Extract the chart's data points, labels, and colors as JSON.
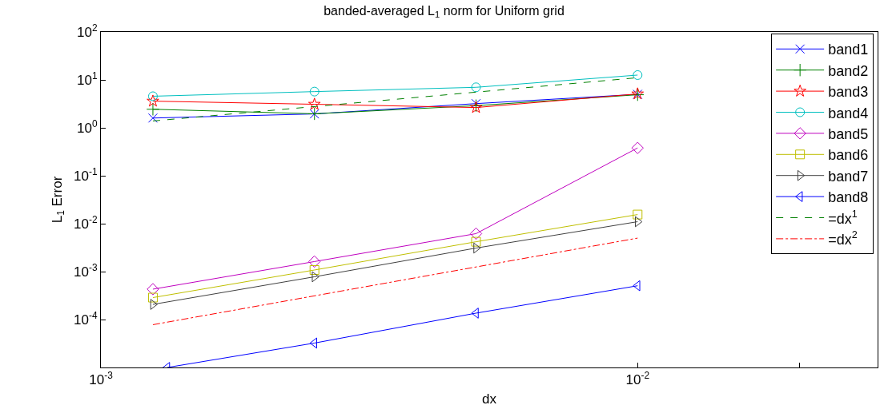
{
  "chart_data": {
    "type": "line",
    "title": "banded-averaged L$_{1}$ norm for Uniform grid",
    "xlabel": "dx",
    "ylabel": "L$_{1}$ Error",
    "x": [
      0.00125,
      0.0025,
      0.005,
      0.01
    ],
    "series": [
      {
        "name": "band1",
        "color": "#0000ff",
        "marker": "x",
        "values": [
          1.6,
          1.95,
          3.2,
          5.0
        ]
      },
      {
        "name": "band2",
        "color": "#008000",
        "marker": "plus",
        "values": [
          2.44,
          1.96,
          2.9,
          4.9
        ]
      },
      {
        "name": "band3",
        "color": "#ff0000",
        "marker": "star",
        "values": [
          3.6,
          3.1,
          2.65,
          5.1
        ]
      },
      {
        "name": "band4",
        "color": "#00bfbf",
        "marker": "circle",
        "values": [
          4.56,
          5.7,
          7.0,
          12.6
        ]
      },
      {
        "name": "band5",
        "color": "#bf00bf",
        "marker": "diamond",
        "values": [
          0.00043,
          0.00162,
          0.0062,
          0.38
        ]
      },
      {
        "name": "band6",
        "color": "#bfbf00",
        "marker": "square",
        "values": [
          0.000287,
          0.00108,
          0.0042,
          0.0155
        ]
      },
      {
        "name": "band7",
        "color": "#404040",
        "marker": "triangle-right",
        "values": [
          0.000207,
          0.00078,
          0.0031,
          0.011
        ]
      },
      {
        "name": "band8",
        "color": "#0000ff",
        "marker": "triangle-left",
        "x": [
          0.00133,
          0.0025,
          0.005,
          0.01
        ],
        "values": [
          1e-05,
          3.23e-05,
          0.000136,
          0.000507
        ]
      },
      {
        "name": "=dx$^{1}$",
        "color": "#008000",
        "marker": "none",
        "line_style": "dashed",
        "x": [
          0.00125,
          0.01
        ],
        "values": [
          1.39,
          11.1
        ]
      },
      {
        "name": "=dx$^{2}$",
        "color": "#ff0000",
        "marker": "none",
        "line_style": "dashdot",
        "x": [
          0.00125,
          0.01
        ],
        "values": [
          7.8e-05,
          0.005
        ]
      }
    ],
    "log": "xy",
    "xlim": [
      0.001,
      0.028
    ],
    "ylim": [
      1e-05,
      100
    ],
    "xticks": [
      {
        "value": 0.001,
        "label": "10$^{-3}$"
      },
      {
        "value": 0.01,
        "label": "10$^{-2}$"
      },
      {
        "value": 0.02,
        "label": null
      }
    ],
    "yticks": [
      {
        "value": 1e-05,
        "label": null
      },
      {
        "value": 0.0001,
        "label": "10$^{-4}$"
      },
      {
        "value": 0.001,
        "label": "10$^{-3}$"
      },
      {
        "value": 0.01,
        "label": "10$^{-2}$"
      },
      {
        "value": 0.1,
        "label": "10$^{-1}$"
      },
      {
        "value": 1,
        "label": "10$^{0}$"
      },
      {
        "value": 10,
        "label": "10$^{1}$"
      },
      {
        "value": 100,
        "label": "10$^{2}$"
      }
    ],
    "legend": "top right"
  }
}
